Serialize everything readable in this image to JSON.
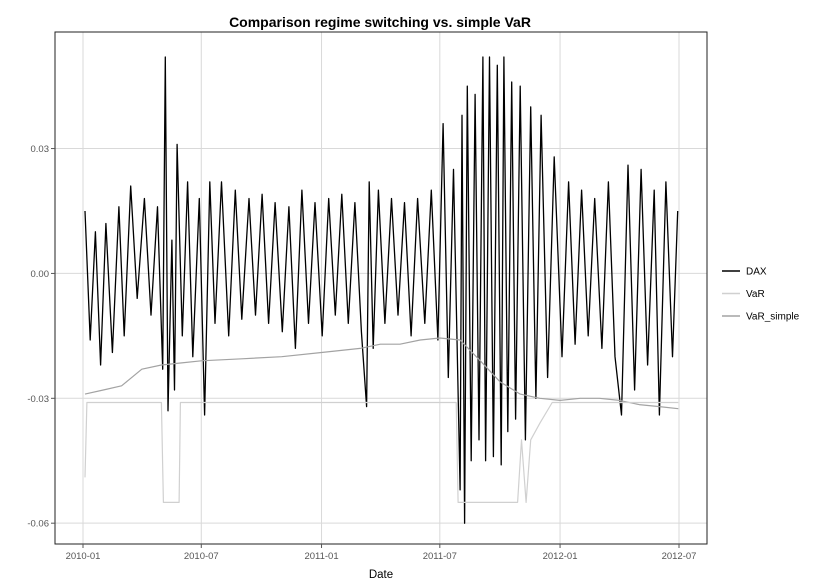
{
  "chart_data": {
    "type": "line",
    "title": "Comparison regime switching vs. simple VaR",
    "xlabel": "Date",
    "ylabel": "",
    "x_range": [
      "2010-01-01",
      "2012-07-01"
    ],
    "ylim": [
      -0.065,
      0.058
    ],
    "x_ticks": [
      "2010-01",
      "2010-07",
      "2011-01",
      "2011-07",
      "2012-01",
      "2012-07"
    ],
    "y_ticks": [
      "0.03",
      "0.00",
      "-0.03",
      "-0.06"
    ],
    "y_tick_values": [
      0.03,
      0.0,
      -0.03,
      -0.06
    ],
    "grid": true,
    "legend_position": "right",
    "series": [
      {
        "name": "DAX",
        "color": "#000000",
        "points": [
          [
            "2010-01-04",
            0.015
          ],
          [
            "2010-01-12",
            -0.016
          ],
          [
            "2010-01-20",
            0.01
          ],
          [
            "2010-01-28",
            -0.022
          ],
          [
            "2010-02-05",
            0.012
          ],
          [
            "2010-02-15",
            -0.019
          ],
          [
            "2010-02-25",
            0.016
          ],
          [
            "2010-03-05",
            -0.015
          ],
          [
            "2010-03-15",
            0.021
          ],
          [
            "2010-03-25",
            -0.006
          ],
          [
            "2010-04-05",
            0.018
          ],
          [
            "2010-04-15",
            -0.01
          ],
          [
            "2010-04-25",
            0.016
          ],
          [
            "2010-05-03",
            -0.023
          ],
          [
            "2010-05-07",
            0.052
          ],
          [
            "2010-05-11",
            -0.033
          ],
          [
            "2010-05-17",
            0.008
          ],
          [
            "2010-05-21",
            -0.028
          ],
          [
            "2010-05-25",
            0.031
          ],
          [
            "2010-06-02",
            -0.015
          ],
          [
            "2010-06-10",
            0.022
          ],
          [
            "2010-06-18",
            -0.02
          ],
          [
            "2010-06-28",
            0.018
          ],
          [
            "2010-07-06",
            -0.034
          ],
          [
            "2010-07-14",
            0.022
          ],
          [
            "2010-07-22",
            -0.012
          ],
          [
            "2010-08-01",
            0.022
          ],
          [
            "2010-08-12",
            -0.015
          ],
          [
            "2010-08-22",
            0.02
          ],
          [
            "2010-09-01",
            -0.011
          ],
          [
            "2010-09-12",
            0.018
          ],
          [
            "2010-09-22",
            -0.01
          ],
          [
            "2010-10-02",
            0.019
          ],
          [
            "2010-10-12",
            -0.012
          ],
          [
            "2010-10-22",
            0.017
          ],
          [
            "2010-11-02",
            -0.014
          ],
          [
            "2010-11-12",
            0.016
          ],
          [
            "2010-11-22",
            -0.018
          ],
          [
            "2010-12-02",
            0.02
          ],
          [
            "2010-12-12",
            -0.012
          ],
          [
            "2010-12-22",
            0.017
          ],
          [
            "2011-01-02",
            -0.015
          ],
          [
            "2011-01-12",
            0.018
          ],
          [
            "2011-01-22",
            -0.01
          ],
          [
            "2011-02-01",
            0.019
          ],
          [
            "2011-02-11",
            -0.012
          ],
          [
            "2011-02-21",
            0.017
          ],
          [
            "2011-03-03",
            -0.014
          ],
          [
            "2011-03-11",
            -0.032
          ],
          [
            "2011-03-15",
            0.022
          ],
          [
            "2011-03-21",
            -0.018
          ],
          [
            "2011-03-29",
            0.02
          ],
          [
            "2011-04-08",
            -0.012
          ],
          [
            "2011-04-18",
            0.018
          ],
          [
            "2011-04-28",
            -0.01
          ],
          [
            "2011-05-08",
            0.017
          ],
          [
            "2011-05-18",
            -0.015
          ],
          [
            "2011-05-28",
            0.018
          ],
          [
            "2011-06-08",
            -0.012
          ],
          [
            "2011-06-18",
            0.02
          ],
          [
            "2011-06-28",
            -0.016
          ],
          [
            "2011-07-06",
            0.036
          ],
          [
            "2011-07-14",
            -0.025
          ],
          [
            "2011-07-22",
            0.025
          ],
          [
            "2011-08-01",
            -0.052
          ],
          [
            "2011-08-04",
            0.038
          ],
          [
            "2011-08-08",
            -0.06
          ],
          [
            "2011-08-12",
            0.045
          ],
          [
            "2011-08-18",
            -0.045
          ],
          [
            "2011-08-24",
            0.043
          ],
          [
            "2011-08-30",
            -0.04
          ],
          [
            "2011-09-05",
            0.052
          ],
          [
            "2011-09-09",
            -0.045
          ],
          [
            "2011-09-15",
            0.052
          ],
          [
            "2011-09-21",
            -0.044
          ],
          [
            "2011-09-27",
            0.05
          ],
          [
            "2011-10-03",
            -0.046
          ],
          [
            "2011-10-07",
            0.052
          ],
          [
            "2011-10-13",
            -0.038
          ],
          [
            "2011-10-19",
            0.046
          ],
          [
            "2011-10-25",
            -0.035
          ],
          [
            "2011-11-01",
            0.045
          ],
          [
            "2011-11-09",
            -0.04
          ],
          [
            "2011-11-17",
            0.04
          ],
          [
            "2011-11-25",
            -0.03
          ],
          [
            "2011-12-03",
            0.038
          ],
          [
            "2011-12-13",
            -0.025
          ],
          [
            "2011-12-23",
            0.028
          ],
          [
            "2012-01-04",
            -0.02
          ],
          [
            "2012-01-14",
            0.022
          ],
          [
            "2012-01-24",
            -0.017
          ],
          [
            "2012-02-03",
            0.02
          ],
          [
            "2012-02-13",
            -0.015
          ],
          [
            "2012-02-23",
            0.018
          ],
          [
            "2012-03-05",
            -0.018
          ],
          [
            "2012-03-15",
            0.022
          ],
          [
            "2012-03-25",
            -0.02
          ],
          [
            "2012-04-04",
            -0.034
          ],
          [
            "2012-04-14",
            0.026
          ],
          [
            "2012-04-24",
            -0.028
          ],
          [
            "2012-05-04",
            0.025
          ],
          [
            "2012-05-14",
            -0.022
          ],
          [
            "2012-05-24",
            0.02
          ],
          [
            "2012-06-01",
            -0.034
          ],
          [
            "2012-06-11",
            0.022
          ],
          [
            "2012-06-21",
            -0.02
          ],
          [
            "2012-06-29",
            0.015
          ]
        ]
      },
      {
        "name": "VaR",
        "color": "#d0d0d0",
        "points": [
          [
            "2010-01-04",
            -0.049
          ],
          [
            "2010-01-07",
            -0.031
          ],
          [
            "2010-05-01",
            -0.031
          ],
          [
            "2010-05-04",
            -0.055
          ],
          [
            "2010-05-28",
            -0.055
          ],
          [
            "2010-05-30",
            -0.031
          ],
          [
            "2011-07-26",
            -0.031
          ],
          [
            "2011-07-29",
            -0.055
          ],
          [
            "2011-10-28",
            -0.055
          ],
          [
            "2011-11-03",
            -0.04
          ],
          [
            "2011-11-10",
            -0.055
          ],
          [
            "2011-11-17",
            -0.04
          ],
          [
            "2011-12-01",
            -0.036
          ],
          [
            "2011-12-20",
            -0.031
          ],
          [
            "2012-06-30",
            -0.031
          ]
        ]
      },
      {
        "name": "VaR_simple",
        "color": "#a3a3a3",
        "points": [
          [
            "2010-01-04",
            -0.029
          ],
          [
            "2010-02-01",
            -0.028
          ],
          [
            "2010-03-01",
            -0.027
          ],
          [
            "2010-04-01",
            -0.023
          ],
          [
            "2010-05-01",
            -0.022
          ],
          [
            "2010-06-01",
            -0.0215
          ],
          [
            "2010-07-01",
            -0.021
          ],
          [
            "2010-09-01",
            -0.0205
          ],
          [
            "2010-11-01",
            -0.02
          ],
          [
            "2011-01-01",
            -0.019
          ],
          [
            "2011-03-01",
            -0.018
          ],
          [
            "2011-04-01",
            -0.017
          ],
          [
            "2011-05-01",
            -0.017
          ],
          [
            "2011-06-01",
            -0.016
          ],
          [
            "2011-07-01",
            -0.0155
          ],
          [
            "2011-08-01",
            -0.016
          ],
          [
            "2011-09-01",
            -0.021
          ],
          [
            "2011-10-01",
            -0.026
          ],
          [
            "2011-11-01",
            -0.029
          ],
          [
            "2011-12-01",
            -0.03
          ],
          [
            "2012-01-01",
            -0.0305
          ],
          [
            "2012-02-01",
            -0.03
          ],
          [
            "2012-03-01",
            -0.03
          ],
          [
            "2012-04-01",
            -0.0305
          ],
          [
            "2012-05-01",
            -0.0315
          ],
          [
            "2012-06-01",
            -0.032
          ],
          [
            "2012-06-30",
            -0.0325
          ]
        ]
      }
    ]
  }
}
